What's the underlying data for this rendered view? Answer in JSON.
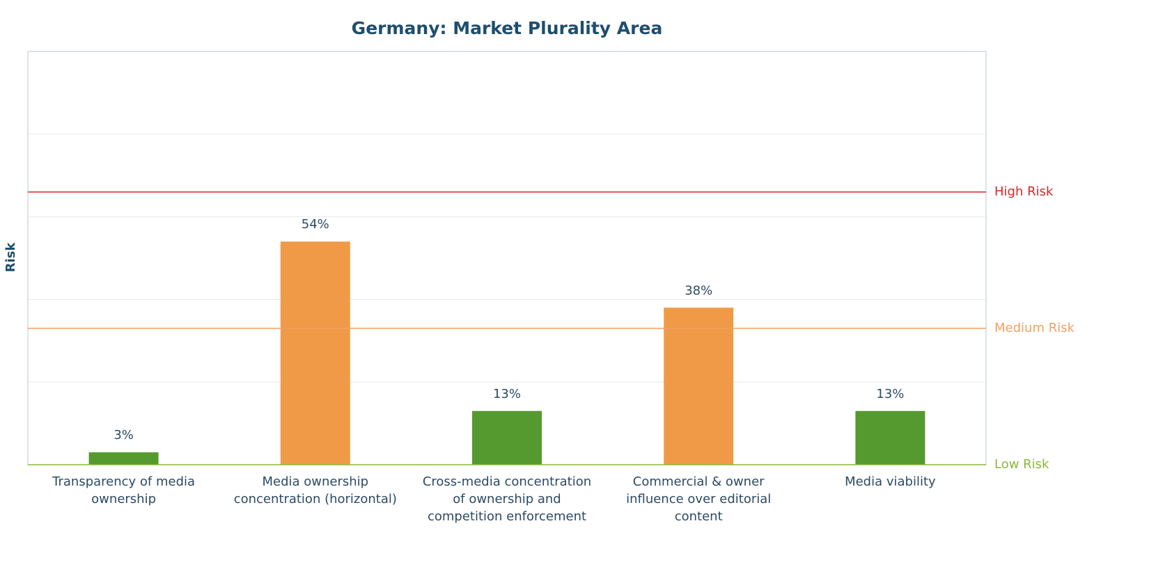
{
  "chart_data": {
    "type": "bar",
    "title": "Germany: Market Plurality Area",
    "y_label": "Risk",
    "categories": [
      "Transparency of media ownership",
      "Media ownership concentration (horizontal)",
      "Cross-media concentration of ownership and competition enforcement",
      "Commercial & owner influence over editorial content",
      "Media viability"
    ],
    "values": [
      3,
      54,
      13,
      38,
      13
    ],
    "value_labels": [
      "3%",
      "54%",
      "13%",
      "38%",
      "13%"
    ],
    "colors": [
      "#559a2e",
      "#f09a48",
      "#559a2e",
      "#f09a48",
      "#559a2e"
    ],
    "ylim": [
      0,
      100
    ],
    "yticks": [
      20,
      40,
      60,
      80
    ],
    "grid": true,
    "thresholds": [
      {
        "label": "High Risk",
        "value": 66,
        "color": "#d62728"
      },
      {
        "label": "Medium Risk",
        "value": 33,
        "color": "#f0a060"
      },
      {
        "label": "Low Risk",
        "value": 0,
        "color": "#8ab83a"
      }
    ]
  }
}
